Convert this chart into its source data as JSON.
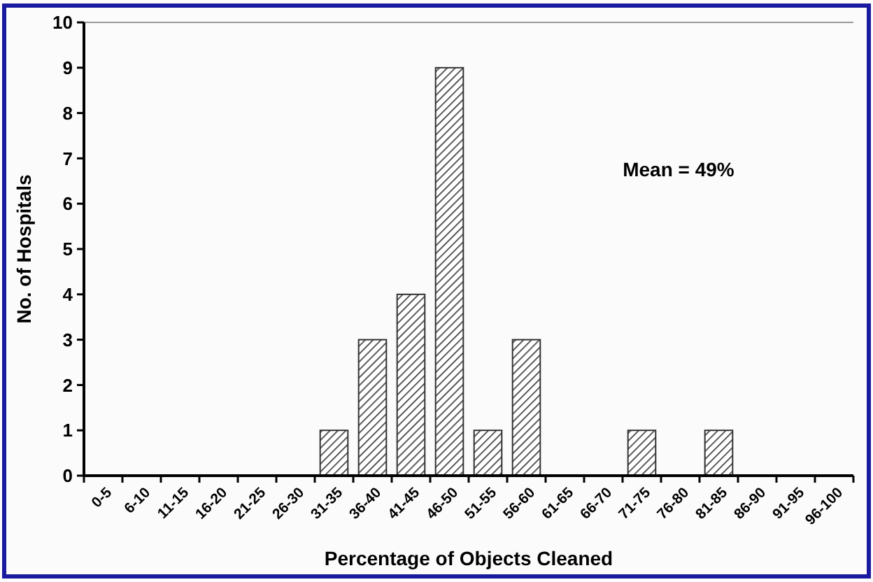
{
  "chart_data": {
    "type": "bar",
    "xlabel": "Percentage of Objects Cleaned",
    "ylabel": "No. of Hospitals",
    "categories": [
      "0-5",
      "6-10",
      "11-15",
      "16-20",
      "21-25",
      "26-30",
      "31-35",
      "36-40",
      "41-45",
      "46-50",
      "51-55",
      "56-60",
      "61-65",
      "66-70",
      "71-75",
      "76-80",
      "81-85",
      "86-90",
      "91-95",
      "96-100"
    ],
    "values": [
      0,
      0,
      0,
      0,
      0,
      0,
      1,
      3,
      4,
      9,
      1,
      3,
      0,
      0,
      1,
      0,
      1,
      0,
      0,
      0
    ],
    "color": "#333333",
    "ylim": [
      0,
      10
    ],
    "yticks": [
      0,
      1,
      2,
      3,
      4,
      5,
      6,
      7,
      8,
      9,
      10
    ],
    "grid": false,
    "annotations": [
      "Mean = 49%"
    ]
  }
}
